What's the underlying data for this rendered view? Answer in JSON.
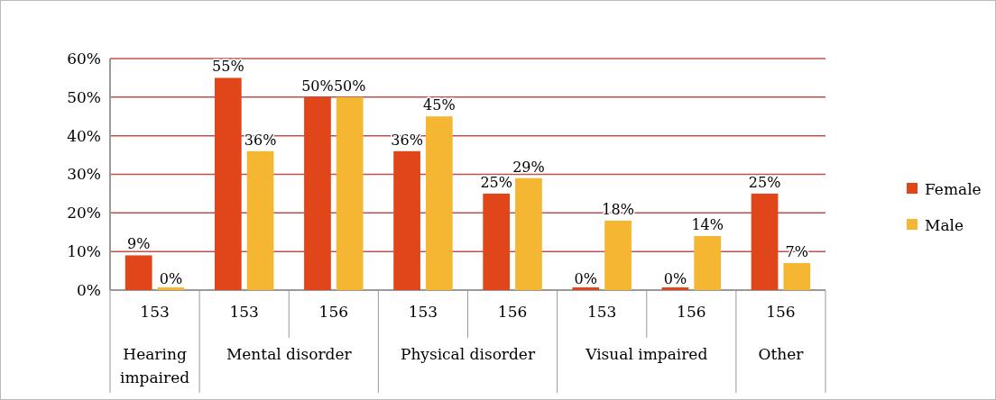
{
  "chart_data": {
    "type": "bar",
    "categories": [
      "153",
      "153",
      "156",
      "153",
      "156",
      "153",
      "156",
      "156"
    ],
    "annotations": [
      "Hearing impaired",
      "Mental disorder",
      "Physical disorder",
      "Visual impaired",
      "Other"
    ],
    "series": [
      {
        "name": "Female",
        "color": "#e0461a",
        "values": [
          9,
          55,
          50,
          36,
          25,
          0,
          0,
          25
        ],
        "value_labels": [
          "9%",
          "55%",
          "50%",
          "36%",
          "25%",
          "0%",
          "0%",
          "25%"
        ]
      },
      {
        "name": "Male",
        "color": "#f5b731",
        "values": [
          0,
          36,
          50,
          45,
          29,
          18,
          14,
          7
        ],
        "value_labels": [
          "0%",
          "36%",
          "50%",
          "45%",
          "29%",
          "18%",
          "14%",
          "7%"
        ]
      }
    ],
    "ylim": [
      0,
      60
    ],
    "yticks": [
      {
        "value": 0,
        "label": "0%"
      },
      {
        "value": 10,
        "label": "10%"
      },
      {
        "value": 20,
        "label": "20%"
      },
      {
        "value": 30,
        "label": "30%"
      },
      {
        "value": 40,
        "label": "40%"
      },
      {
        "value": 50,
        "label": "50%"
      },
      {
        "value": 60,
        "label": "60%"
      }
    ],
    "grid": "y",
    "legend": "right"
  }
}
